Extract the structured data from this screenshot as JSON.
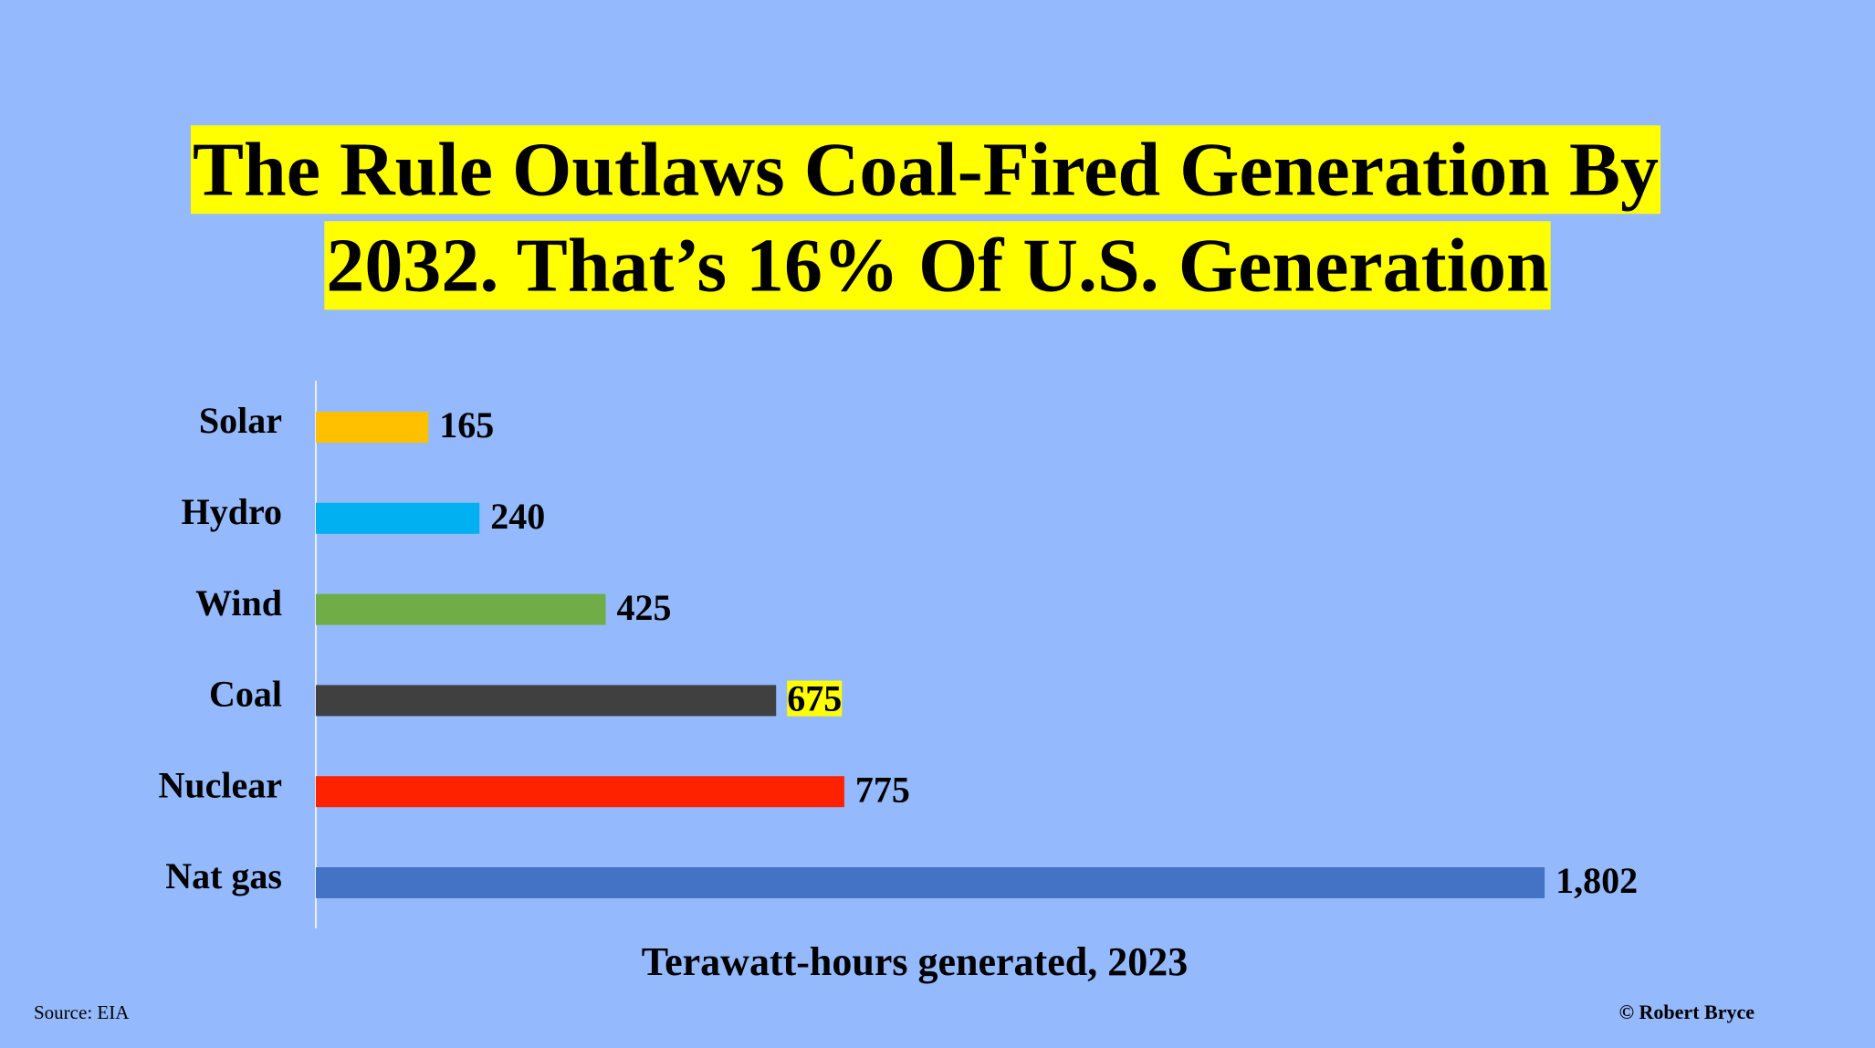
{
  "chart_data": {
    "type": "hbar",
    "title": [
      "The Rule Outlaws Coal-Fired Generation By",
      "2032. That’s 16% Of U.S. Generation"
    ],
    "title_highlight": "#ffff00",
    "categories": [
      "Solar",
      "Hydro",
      "Wind",
      "Coal",
      "Nuclear",
      "Nat gas"
    ],
    "values": [
      165,
      240,
      425,
      675,
      775,
      1802
    ],
    "value_labels": [
      "165",
      "240",
      "425",
      "675",
      "775",
      "1,802"
    ],
    "value_label_highlight": [
      false,
      false,
      false,
      true,
      false,
      false
    ],
    "colors": [
      "#ffc000",
      "#00b0f0",
      "#70ad47",
      "#404040",
      "#ff2200",
      "#4472c4"
    ],
    "xlim": [
      0,
      2000
    ],
    "x_label": "Terawatt-hours generated, 2023",
    "source": "Source: EIA",
    "credit": "© Robert Bryce"
  }
}
